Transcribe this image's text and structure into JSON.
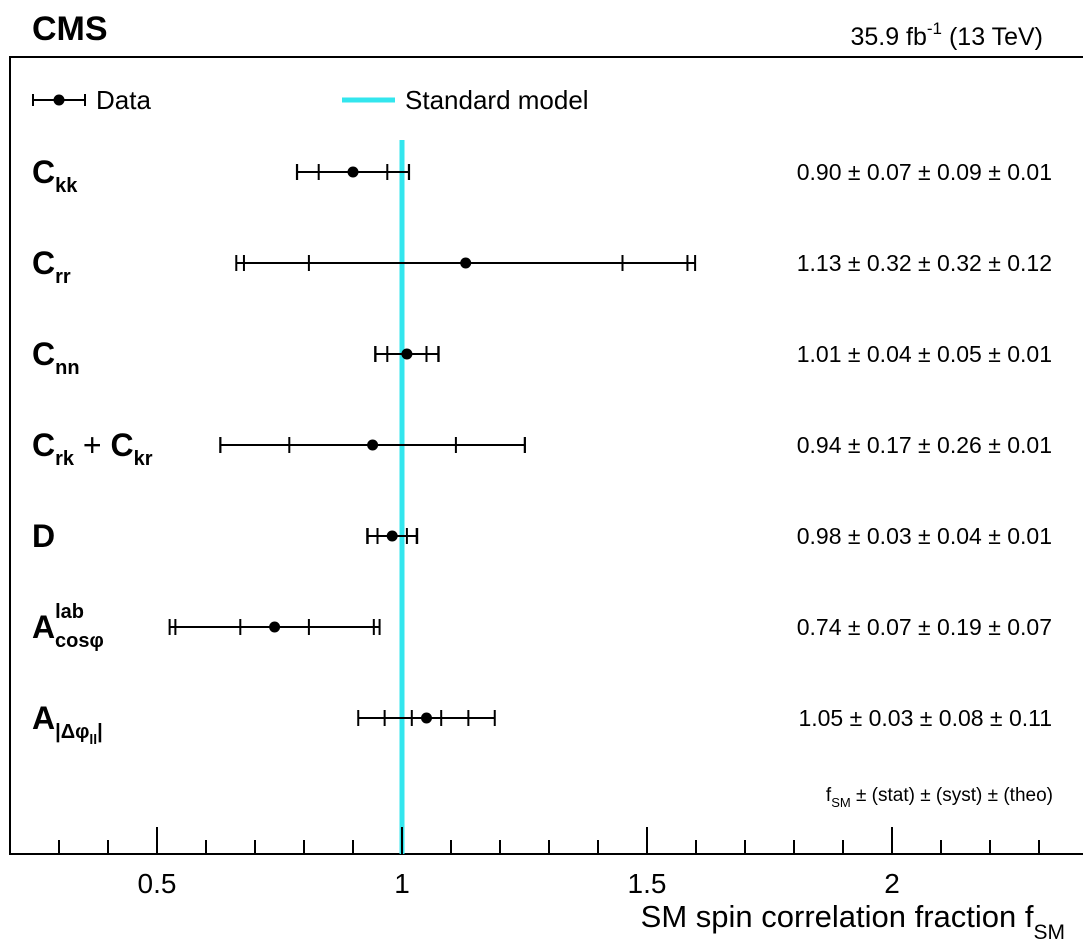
{
  "header": {
    "experiment": "CMS",
    "lumi_value": "35.9 fb",
    "lumi_exp": "-1",
    "energy": " (13 TeV)"
  },
  "legend": {
    "data_label": "Data",
    "sm_label": "Standard model"
  },
  "colors": {
    "sm_line": "#33e6ee",
    "data": "#000000"
  },
  "chart_data": {
    "type": "scatter",
    "orientation": "horizontal-error-bars",
    "xlabel_main": "SM spin correlation fraction f",
    "xlabel_sub": "SM",
    "xlim": [
      0.3,
      2.4
    ],
    "xticks": [
      0.5,
      1,
      1.5,
      2
    ],
    "xtick_labels": [
      "0.5",
      "1",
      "1.5",
      "2"
    ],
    "reference_line": {
      "name": "Standard model",
      "x": 1.0
    },
    "legend_placement": "top",
    "grid": false,
    "value_format": {
      "prefix": "f",
      "prefix_sub": "SM",
      "text": " ± (stat) ± (syst) ± (theo)"
    },
    "points": [
      {
        "label": {
          "main": "C",
          "sub": "kk",
          "rest": []
        },
        "value": 0.9,
        "stat": 0.07,
        "syst": 0.09,
        "theo": 0.01,
        "display": "0.90 ± 0.07 ± 0.09 ± 0.01"
      },
      {
        "label": {
          "main": "C",
          "sub": "rr",
          "rest": []
        },
        "value": 1.13,
        "stat": 0.32,
        "syst": 0.32,
        "theo": 0.12,
        "display": "1.13 ± 0.32 ± 0.32 ± 0.12"
      },
      {
        "label": {
          "main": "C",
          "sub": "nn",
          "rest": []
        },
        "value": 1.01,
        "stat": 0.04,
        "syst": 0.05,
        "theo": 0.01,
        "display": "1.01 ± 0.04 ± 0.05 ± 0.01"
      },
      {
        "label": {
          "main": "C",
          "sub": "rk",
          "rest": [
            {
              "text": " + ",
              "type": "plain"
            },
            {
              "text": "C",
              "type": "main"
            },
            {
              "text": "kr",
              "type": "sub"
            }
          ]
        },
        "value": 0.94,
        "stat": 0.17,
        "syst": 0.26,
        "theo": 0.01,
        "display": "0.94 ± 0.17 ± 0.26 ± 0.01"
      },
      {
        "label": {
          "main": "D",
          "sub": "",
          "rest": []
        },
        "value": 0.98,
        "stat": 0.03,
        "syst": 0.04,
        "theo": 0.01,
        "display": "0.98 ± 0.03 ± 0.04 ± 0.01"
      },
      {
        "label": {
          "main": "A",
          "sub": "cosφ",
          "sup": "lab",
          "rest": []
        },
        "value": 0.74,
        "stat": 0.07,
        "syst": 0.19,
        "theo": 0.07,
        "display": "0.74 ± 0.07 ± 0.19 ± 0.07"
      },
      {
        "label": {
          "main": "A",
          "sub": "|Δφ",
          "subsub": "ll",
          "subtail": "|",
          "rest": []
        },
        "value": 1.05,
        "stat": 0.03,
        "syst": 0.08,
        "theo": 0.11,
        "display": "1.05 ± 0.03 ± 0.08 ± 0.11"
      }
    ]
  }
}
